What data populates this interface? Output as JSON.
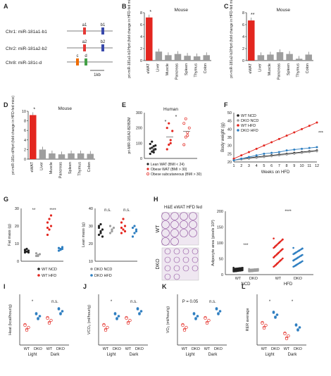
{
  "panel_letters": [
    "A",
    "B",
    "C",
    "D",
    "E",
    "F",
    "G",
    "H",
    "I",
    "J",
    "K",
    "L"
  ],
  "genes": {
    "rows": [
      {
        "label": "Chr1: miR-181a1-b1",
        "exons": [
          {
            "text": "a1",
            "color": "#e53935"
          },
          {
            "text": "b1",
            "color": "#3949ab"
          }
        ]
      },
      {
        "label": "Chr2: miR-181a2-b2",
        "exons": [
          {
            "text": "a2",
            "color": "#e53935"
          },
          {
            "text": "b2",
            "color": "#3949ab"
          }
        ]
      },
      {
        "label": "Chr8: miR-181c-d",
        "exons": [
          {
            "text": "c",
            "color": "#ef6c00"
          },
          {
            "text": "d",
            "color": "#43a047"
          }
        ]
      }
    ],
    "scale": "1kb"
  },
  "colors": {
    "red": "#e3261f",
    "blue": "#2f7fc1",
    "grey": "#9e9e9e",
    "dark": "#222222"
  },
  "chart_data": [
    {
      "id": "B",
      "type": "bar",
      "title": "Mouse",
      "ylabel": "pri-miR-181a1-b1/Hprt (fold change in HFD-fed mice)",
      "categories": [
        "eWAT",
        "Liver",
        "Muscle",
        "Pancreas",
        "Spleen",
        "Thymus",
        "Colon"
      ],
      "values": [
        7.2,
        1.5,
        0.9,
        1.1,
        0.8,
        0.7,
        0.9
      ],
      "ylim": [
        0,
        8
      ],
      "yticks": [
        0,
        2,
        4,
        6,
        8
      ],
      "significance": "*"
    },
    {
      "id": "C",
      "type": "bar",
      "title": "Mouse",
      "ylabel": "pri-miR-181a2-b2/Hprt (fold change in HFD-fed mice)",
      "categories": [
        "eWAT",
        "Liver",
        "Muscle",
        "Pancreas",
        "Spleen",
        "Thymus",
        "Colon"
      ],
      "values": [
        6.7,
        0.9,
        1.0,
        1.4,
        1.1,
        0.3,
        1.0
      ],
      "ylim": [
        0,
        8
      ],
      "yticks": [
        0,
        2,
        4,
        6,
        8
      ],
      "significance": "**"
    },
    {
      "id": "D",
      "type": "bar",
      "title": "Mouse",
      "ylabel": "pri-miR-181c-d/Hprt (fold change in HFD-fed mice)",
      "categories": [
        "eWAT",
        "Liver",
        "Muscle",
        "Pancreas",
        "Spleen",
        "Thymus",
        "Colon"
      ],
      "values": [
        9.2,
        2.0,
        1.2,
        1.0,
        1.2,
        1.2,
        1.1
      ],
      "ylim": [
        0,
        10
      ],
      "yticks": [
        0,
        2,
        4,
        6,
        8,
        10
      ],
      "significance": "*"
    },
    {
      "id": "E",
      "type": "scatter",
      "title": "Human",
      "ylabel": "pri-MIR-181A2-B2/B2M",
      "ylim": [
        0,
        300
      ],
      "yticks": [
        0,
        100,
        200,
        300
      ],
      "series": [
        {
          "name": "Lean WAT (BMI < 24)",
          "color": "#222222",
          "values": [
            30,
            45,
            55,
            60,
            65,
            70,
            80,
            85,
            95,
            110,
            40
          ]
        },
        {
          "name": "Obese WAT (BMI > 30)",
          "color": "#e3261f",
          "values": [
            60,
            90,
            120,
            180,
            200,
            230,
            100
          ]
        },
        {
          "name": "Obese subcutaneous (BMI > 30)",
          "color": "#e3261f",
          "values": [
            90,
            140,
            170,
            200,
            230,
            260,
            150
          ]
        }
      ],
      "significance": [
        "*",
        "*"
      ]
    },
    {
      "id": "F",
      "type": "line",
      "ylabel": "Body weight (g)",
      "xlabel": "Weeks on HFD",
      "ylim": [
        20,
        50
      ],
      "yticks": [
        20,
        25,
        30,
        35,
        40,
        45,
        50
      ],
      "x": [
        1,
        2,
        3,
        4,
        5,
        6,
        7,
        8,
        9,
        10,
        11,
        12
      ],
      "series": [
        {
          "name": "WT NCD",
          "color": "#222222",
          "values": [
            21,
            22,
            22.5,
            23,
            23.5,
            24,
            24.5,
            25,
            25.5,
            26,
            26.5,
            27
          ]
        },
        {
          "name": "DKO NCD",
          "color": "#9e9e9e",
          "values": [
            21,
            21.5,
            22,
            22.5,
            23,
            23.5,
            24,
            24.5,
            25,
            25.5,
            26,
            26.5
          ]
        },
        {
          "name": "WT HFD",
          "color": "#e3261f",
          "values": [
            22,
            24,
            26,
            28,
            30,
            32,
            34,
            36,
            38,
            40,
            42,
            44
          ]
        },
        {
          "name": "DKO HFD",
          "color": "#2f7fc1",
          "values": [
            21,
            22,
            23,
            24,
            25,
            25.5,
            26,
            27,
            27.5,
            28,
            28.5,
            29
          ]
        }
      ],
      "significance": "***"
    },
    {
      "id": "G1",
      "type": "scatter",
      "ylabel": "Fat mass (g)",
      "ylim": [
        0,
        30
      ],
      "yticks": [
        0,
        10,
        20,
        30
      ],
      "groups": [
        {
          "color": "#222222",
          "values": [
            5,
            5.5,
            6,
            6.5,
            7,
            5,
            6
          ]
        },
        {
          "color": "#9e9e9e",
          "values": [
            3,
            3.5,
            4,
            4.5,
            3
          ]
        },
        {
          "color": "#e3261f",
          "values": [
            15,
            18,
            20,
            22,
            24,
            26,
            19
          ]
        },
        {
          "color": "#2f7fc1",
          "values": [
            6,
            7,
            8,
            7.5,
            6.5,
            7
          ]
        }
      ],
      "significance": [
        "**",
        "****"
      ]
    },
    {
      "id": "G2",
      "type": "scatter",
      "ylabel": "Lean mass (g)",
      "ylim": [
        10,
        40
      ],
      "yticks": [
        10,
        20,
        30,
        40
      ],
      "groups": [
        {
          "color": "#222222",
          "values": [
            25,
            27,
            28,
            30,
            26,
            24,
            29,
            31
          ]
        },
        {
          "color": "#9e9e9e",
          "values": [
            26,
            28,
            29,
            30,
            27
          ]
        },
        {
          "color": "#e3261f",
          "values": [
            26,
            28,
            30,
            32,
            34,
            27,
            29
          ]
        },
        {
          "color": "#2f7fc1",
          "values": [
            24,
            26,
            28,
            29,
            30,
            27
          ]
        }
      ],
      "significance": [
        "n.s.",
        "n.s."
      ]
    },
    {
      "id": "H",
      "type": "scatter",
      "title": "H&E eWAT HFD fed",
      "ylabel": "Adipocyte area (pixels 10³)",
      "ylim": [
        0,
        200
      ],
      "yticks": [
        0,
        50,
        100,
        150,
        200
      ],
      "categories": [
        "WT",
        "DKO",
        "WT",
        "DKO"
      ],
      "group_labels": [
        "NCD",
        "HFD"
      ],
      "significance": [
        "***",
        "****"
      ]
    },
    {
      "id": "I",
      "type": "scatter",
      "ylabel": "Heat (kcal/hour/g)",
      "categories": [
        "WT",
        "DKO",
        "WT",
        "DKO"
      ],
      "group_labels": [
        "Light",
        "Dark"
      ],
      "significance": [
        "*",
        "n.s."
      ]
    },
    {
      "id": "J",
      "type": "scatter",
      "ylabel": "VCO₂ (ml/hour/g)",
      "categories": [
        "WT",
        "DKO",
        "WT",
        "DKO"
      ],
      "group_labels": [
        "Light",
        "Dark"
      ],
      "significance": [
        "*",
        "n.s."
      ]
    },
    {
      "id": "K",
      "type": "scatter",
      "ylabel": "VO₂ (ml/hour/g)",
      "categories": [
        "WT",
        "DKO",
        "WT",
        "DKO"
      ],
      "group_labels": [
        "Light",
        "Dark"
      ],
      "significance": [
        "P = 0.05",
        "n.s."
      ]
    },
    {
      "id": "L",
      "type": "scatter",
      "ylabel": "RER average",
      "categories": [
        "WT",
        "DKO",
        "WT",
        "DKO"
      ],
      "group_labels": [
        "Light",
        "Dark"
      ],
      "significance": [
        "*",
        "*"
      ]
    }
  ],
  "legend_g": [
    "WT NCD",
    "DKO NCD",
    "WT HFD",
    "DKO HFD"
  ],
  "micro": {
    "wt_label": "WT",
    "dko_label": "DKO"
  }
}
